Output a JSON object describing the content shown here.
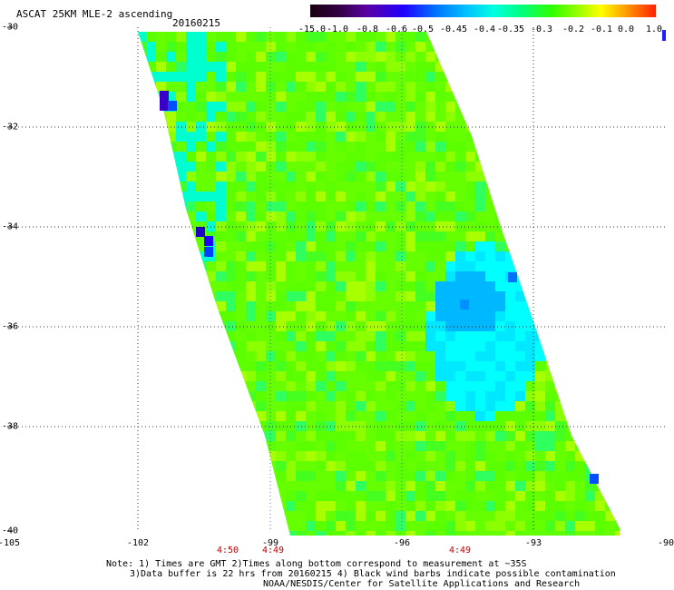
{
  "title": "ASCAT 25KM MLE-2 ascending",
  "date": "20160215",
  "colorbar": {
    "labels": [
      "-15.0",
      "-1.0",
      "-0.8",
      "-0.6",
      "-0.5",
      "-0.45",
      "-0.4",
      "-0.35",
      "-0.3",
      "-0.2",
      "-0.1",
      "0.0",
      "1.0"
    ]
  },
  "axes": {
    "y_labels": [
      "-30",
      "-32",
      "-34",
      "-36",
      "-38",
      "-40"
    ],
    "x_labels": [
      "-105",
      "-102",
      "-99",
      "-96",
      "-93",
      "-90"
    ],
    "times": [
      "4:50",
      "4:49",
      "4:49"
    ]
  },
  "notes": [
    "Note: 1) Times are GMT 2)Times along bottom correspond to measurement at ~35S",
    "3)Data buffer is 22 hrs from 20160215 4) Black wind barbs indicate possible contamination",
    "NOAA/NESDIS/Center for Satellite Applications and Research"
  ],
  "colors": {
    "ocean_background": "#ffffff",
    "dominant_swath": "#5cff00"
  }
}
